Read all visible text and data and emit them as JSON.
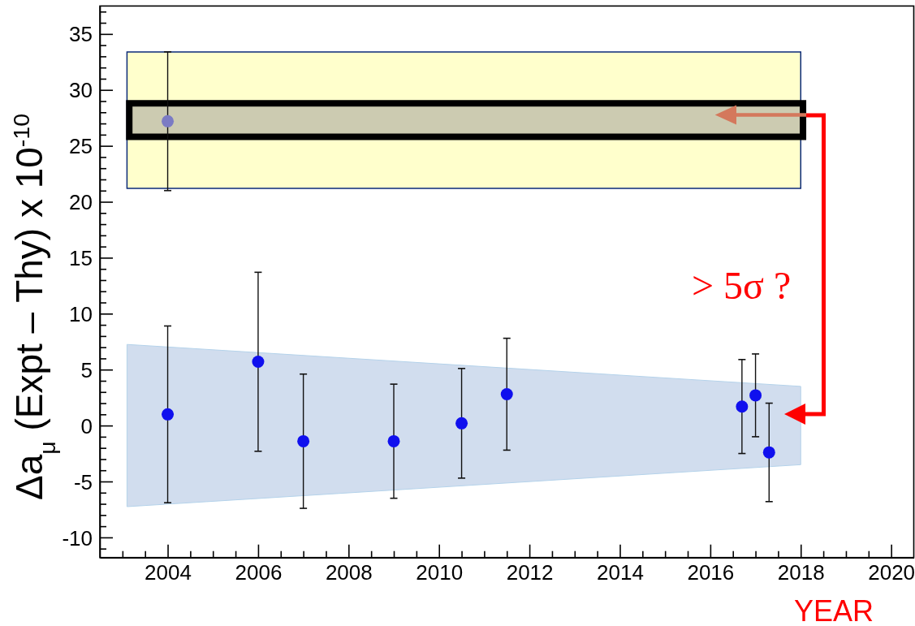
{
  "chart_data": {
    "type": "scatter",
    "xlabel": "YEAR",
    "ylabel": "Δa$_{μ}$ (Expt – Thy) x 10$^{-10}$",
    "annotations": [
      "> 5σ ?"
    ],
    "xlim": [
      2002.5,
      2020.5
    ],
    "ylim": [
      -11.8,
      37.5
    ],
    "xticks": [
      {
        "value": 2003,
        "label": null
      },
      {
        "value": 2003.5,
        "label": null
      },
      2004,
      {
        "value": 2004.5,
        "label": null
      },
      {
        "value": 2005,
        "label": null
      },
      {
        "value": 2005.5,
        "label": null
      },
      2006,
      {
        "value": 2006.5,
        "label": null
      },
      {
        "value": 2007,
        "label": null
      },
      {
        "value": 2007.5,
        "label": null
      },
      2008,
      {
        "value": 2008.5,
        "label": null
      },
      {
        "value": 2009,
        "label": null
      },
      {
        "value": 2009.5,
        "label": null
      },
      2010,
      {
        "value": 2010.5,
        "label": null
      },
      {
        "value": 2011,
        "label": null
      },
      {
        "value": 2011.5,
        "label": null
      },
      2012,
      {
        "value": 2012.5,
        "label": null
      },
      {
        "value": 2013,
        "label": null
      },
      {
        "value": 2013.5,
        "label": null
      },
      2014,
      {
        "value": 2014.5,
        "label": null
      },
      {
        "value": 2015,
        "label": null
      },
      {
        "value": 2015.5,
        "label": null
      },
      2016,
      {
        "value": 2016.5,
        "label": null
      },
      {
        "value": 2017,
        "label": null
      },
      {
        "value": 2017.5,
        "label": null
      },
      2018,
      {
        "value": 2018.5,
        "label": null
      },
      {
        "value": 2019,
        "label": null
      },
      {
        "value": 2019.5,
        "label": null
      },
      2020
    ],
    "yticks": [
      {
        "value": -11,
        "label": null
      },
      -10,
      {
        "value": -9,
        "label": null
      },
      {
        "value": -8,
        "label": null
      },
      {
        "value": -7,
        "label": null
      },
      {
        "value": -6,
        "label": null
      },
      -5,
      {
        "value": -4,
        "label": null
      },
      {
        "value": -3,
        "label": null
      },
      {
        "value": -2,
        "label": null
      },
      {
        "value": -1,
        "label": null
      },
      0,
      {
        "value": 1,
        "label": null
      },
      {
        "value": 2,
        "label": null
      },
      {
        "value": 3,
        "label": null
      },
      {
        "value": 4,
        "label": null
      },
      5,
      {
        "value": 6,
        "label": null
      },
      {
        "value": 7,
        "label": null
      },
      {
        "value": 8,
        "label": null
      },
      {
        "value": 9,
        "label": null
      },
      10,
      {
        "value": 11,
        "label": null
      },
      {
        "value": 12,
        "label": null
      },
      {
        "value": 13,
        "label": null
      },
      {
        "value": 14,
        "label": null
      },
      15,
      {
        "value": 16,
        "label": null
      },
      {
        "value": 17,
        "label": null
      },
      {
        "value": 18,
        "label": null
      },
      {
        "value": 19,
        "label": null
      },
      20,
      {
        "value": 21,
        "label": null
      },
      {
        "value": 22,
        "label": null
      },
      {
        "value": 23,
        "label": null
      },
      {
        "value": 24,
        "label": null
      },
      25,
      {
        "value": 26,
        "label": null
      },
      {
        "value": 27,
        "label": null
      },
      {
        "value": 28,
        "label": null
      },
      {
        "value": 29,
        "label": null
      },
      30,
      {
        "value": 31,
        "label": null
      },
      {
        "value": 32,
        "label": null
      },
      {
        "value": 33,
        "label": null
      },
      {
        "value": 34,
        "label": null
      },
      35,
      {
        "value": 36,
        "label": null
      },
      {
        "value": 37,
        "label": null
      }
    ],
    "series": [
      {
        "type": "area",
        "color": "#ffffcc",
        "x": [
          2003.1,
          2018
        ],
        "values": [
          null,
          null
        ],
        "lower": [
          21.2,
          21.2
        ],
        "upper": [
          33.4,
          33.4
        ]
      },
      {
        "type": "area",
        "color": "#cccbb1",
        "x": [
          2003.15,
          2018.05
        ],
        "values": [
          null,
          null
        ],
        "lower": [
          25.8,
          25.8
        ],
        "upper": [
          28.8,
          28.8
        ]
      },
      {
        "type": "area",
        "color": "#d1ddee",
        "x": [
          2003.1,
          2018
        ],
        "values": [
          null,
          null
        ],
        "lower": [
          -7.25,
          -3.5
        ],
        "upper": [
          7.25,
          3.5
        ]
      },
      {
        "color": "#7b7bc4",
        "marker": "circle",
        "x": [
          2004
        ],
        "values": [
          27.2
        ],
        "errors": [
          6.2
        ]
      },
      {
        "color": "#1010ee",
        "marker": "circle",
        "x": [
          2004,
          2006,
          2007,
          2009,
          2010.5,
          2011.5,
          2016.7,
          2017,
          2017.3
        ],
        "values": [
          1.0,
          5.7,
          -1.4,
          -1.4,
          0.2,
          2.8,
          1.7,
          2.7,
          -2.4
        ],
        "errors": [
          7.9,
          8.0,
          6.0,
          5.1,
          4.9,
          5.0,
          4.2,
          3.7,
          4.4
        ]
      }
    ]
  }
}
